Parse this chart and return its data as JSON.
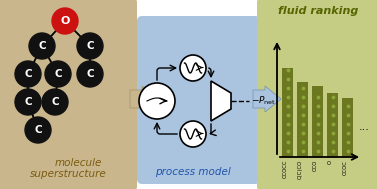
{
  "bg_left": "#c9b68c",
  "bg_mid": "#aac4e0",
  "bg_right": "#c5cc84",
  "atom_black": "#111111",
  "atom_red": "#cc1111",
  "atom_text": "#ffffff",
  "bar_color": "#6b7820",
  "bar_values": [
    0.88,
    0.74,
    0.7,
    0.63,
    0.58
  ],
  "bar_labels": [
    "CCOCC",
    "C(C)CO",
    "CCO",
    "O",
    "CCOC"
  ],
  "title_left_1": "molecule",
  "title_left_2": "superstructure",
  "title_mid": "process model",
  "title_right": "fluid ranking",
  "arrow1_color": "#c9b68c",
  "arrow2_color": "#aac4e0",
  "pnet_label": "$-P_\\mathrm{net}$",
  "dots": "..."
}
